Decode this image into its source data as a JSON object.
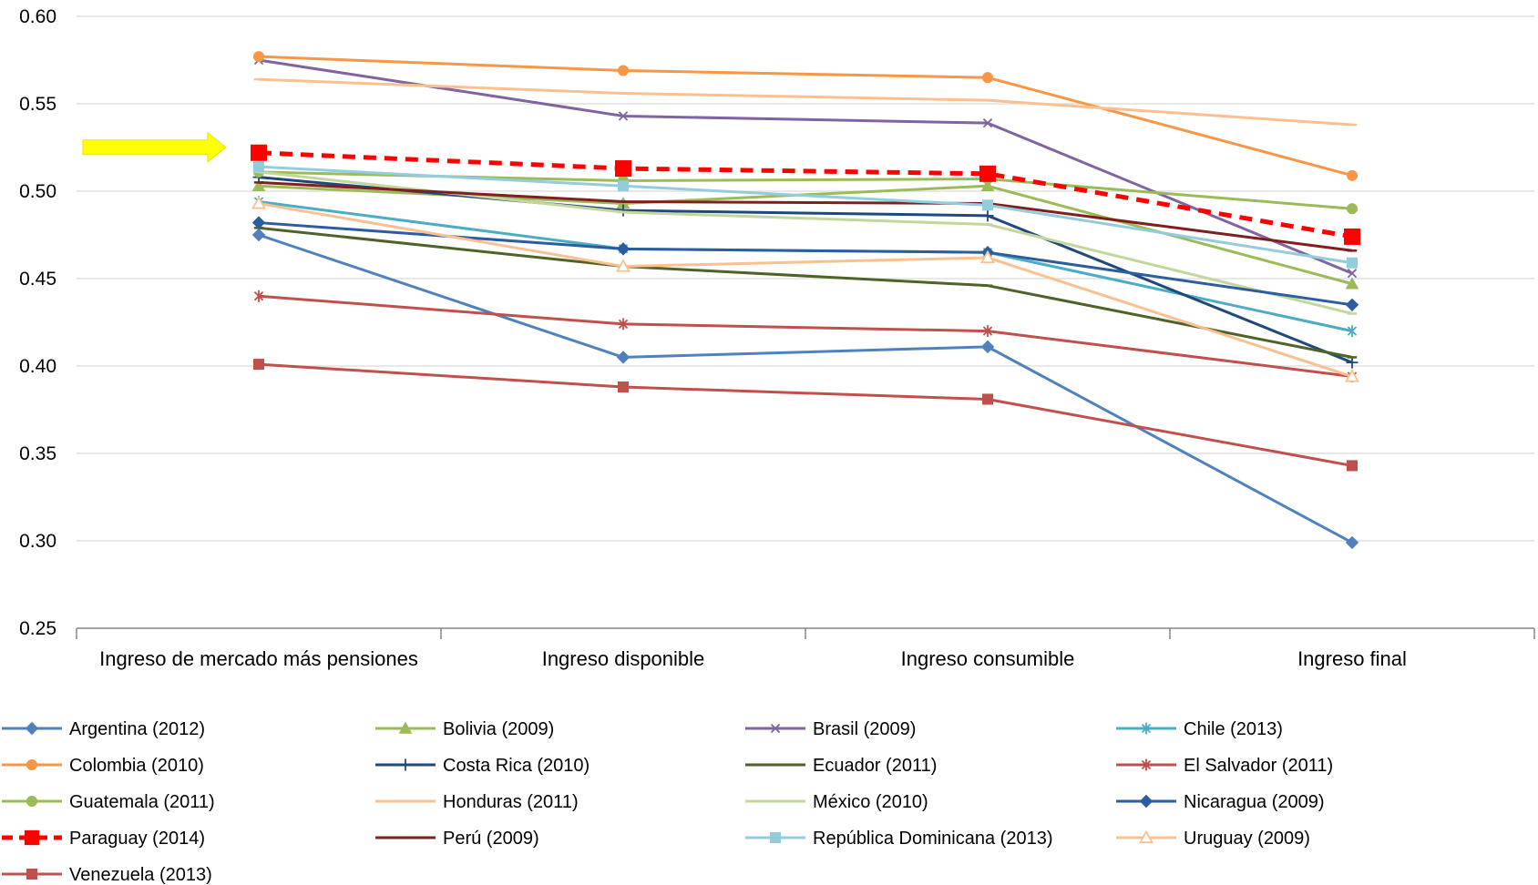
{
  "chart_data": {
    "type": "line",
    "title": "",
    "xlabel": "",
    "ylabel": "",
    "ylim": [
      0.25,
      0.6
    ],
    "yticks": [
      "0.25",
      "0.30",
      "0.35",
      "0.40",
      "0.45",
      "0.50",
      "0.55",
      "0.60"
    ],
    "grid": true,
    "legend_position": "bottom",
    "categories": [
      "Ingreso de mercado más pensiones",
      "Ingreso disponible",
      "Ingreso consumible",
      "Ingreso final"
    ],
    "highlight_arrow_color": "#ffff00",
    "series": [
      {
        "name": "Argentina (2012)",
        "values": [
          0.475,
          0.405,
          0.411,
          0.299
        ],
        "color": "#4f81bd",
        "marker": "diamond",
        "dash": false
      },
      {
        "name": "Bolivia (2009)",
        "values": [
          0.503,
          0.493,
          0.503,
          0.447
        ],
        "color": "#9bbb59",
        "marker": "triangle",
        "dash": false
      },
      {
        "name": "Brasil (2009)",
        "values": [
          0.575,
          0.543,
          0.539,
          0.453
        ],
        "color": "#8064a2",
        "marker": "x",
        "dash": false
      },
      {
        "name": "Chile (2013)",
        "values": [
          0.494,
          0.467,
          0.465,
          0.42
        ],
        "color": "#4bacc6",
        "marker": "star",
        "dash": false
      },
      {
        "name": "Colombia (2010)",
        "values": [
          0.577,
          0.569,
          0.565,
          0.509
        ],
        "color": "#f79646",
        "marker": "circle",
        "dash": false
      },
      {
        "name": "Costa Rica (2010)",
        "values": [
          0.508,
          0.489,
          0.486,
          0.402
        ],
        "color": "#1f497d",
        "marker": "plus",
        "dash": false
      },
      {
        "name": "Ecuador (2011)",
        "values": [
          0.479,
          0.457,
          0.446,
          0.405
        ],
        "color": "#4f6228",
        "marker": "dash",
        "dash": false
      },
      {
        "name": "El Salvador (2011)",
        "values": [
          0.44,
          0.424,
          0.42,
          0.394
        ],
        "color": "#c0504d",
        "marker": "star",
        "dash": false
      },
      {
        "name": "Guatemala (2011)",
        "values": [
          0.511,
          0.506,
          0.507,
          0.49
        ],
        "color": "#9bbb59",
        "marker": "circle",
        "dash": false
      },
      {
        "name": "Honduras (2011)",
        "values": [
          0.564,
          0.556,
          0.552,
          0.538
        ],
        "color": "#fac090",
        "marker": "dash",
        "dash": false
      },
      {
        "name": "México (2010)",
        "values": [
          0.511,
          0.488,
          0.481,
          0.43
        ],
        "color": "#c3d69b",
        "marker": "dash",
        "dash": false
      },
      {
        "name": "Nicaragua (2009)",
        "values": [
          0.482,
          0.467,
          0.465,
          0.435
        ],
        "color": "#2c5d9e",
        "marker": "diamond",
        "dash": false
      },
      {
        "name": "Paraguay (2014)",
        "values": [
          0.522,
          0.513,
          0.51,
          0.474
        ],
        "color": "#ff0000",
        "marker": "square",
        "dash": true
      },
      {
        "name": "Perú (2009)",
        "values": [
          0.505,
          0.494,
          0.493,
          0.466
        ],
        "color": "#7f1f1f",
        "marker": "dash",
        "dash": false
      },
      {
        "name": "República Dominicana (2013)",
        "values": [
          0.514,
          0.503,
          0.492,
          0.459
        ],
        "color": "#93cddd",
        "marker": "square",
        "dash": false
      },
      {
        "name": "Uruguay (2009)",
        "values": [
          0.493,
          0.457,
          0.462,
          0.394
        ],
        "color": "#fac090",
        "marker": "triangle-open",
        "dash": false
      },
      {
        "name": "Venezuela (2013)",
        "values": [
          0.401,
          0.388,
          0.381,
          0.343
        ],
        "color": "#c0504d",
        "marker": "square",
        "dash": false
      }
    ]
  }
}
